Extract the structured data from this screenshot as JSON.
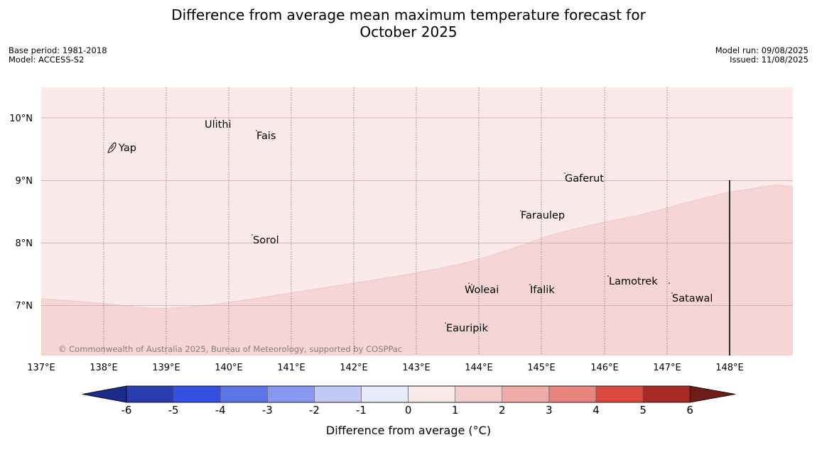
{
  "header": {
    "title_line1": "Difference from average mean maximum temperature forecast for",
    "title_line2": "October 2025",
    "base_period": "Base period: 1981-2018",
    "model": "Model: ACCESS-S2",
    "model_run": "Model run: 09/08/2025",
    "issued": "Issued: 11/08/2025"
  },
  "map": {
    "lat_labels": [
      "10°N",
      "9°N",
      "8°N",
      "7°N"
    ],
    "lon_labels": [
      "137°E",
      "138°E",
      "139°E",
      "140°E",
      "141°E",
      "142°E",
      "143°E",
      "144°E",
      "145°E",
      "146°E",
      "147°E",
      "148°E"
    ],
    "places": [
      {
        "name": "Yap"
      },
      {
        "name": "Ulithi"
      },
      {
        "name": "Fais"
      },
      {
        "name": "Gaferut"
      },
      {
        "name": "Faraulep"
      },
      {
        "name": "Sorol"
      },
      {
        "name": "Lamotrek"
      },
      {
        "name": "Woleai"
      },
      {
        "name": "Ifalik"
      },
      {
        "name": "Satawal"
      },
      {
        "name": "Eauripik"
      }
    ],
    "copyright": "© Commonwealth of Australia 2025, Bureau of Meteorology, supported by COSPPac",
    "region_colors": {
      "0_to_1": "#fbeae9",
      "1_to_2": "#f5d6d4"
    }
  },
  "colorbar": {
    "title": "Difference from average (°C)",
    "labels": [
      "-6",
      "-5",
      "-4",
      "-3",
      "-2",
      "-1",
      "0",
      "1",
      "2",
      "3",
      "4",
      "5",
      "6"
    ],
    "colors": [
      "#1c2a8a",
      "#2a3db0",
      "#3350e0",
      "#5b74e6",
      "#8898ee",
      "#c2c9f5",
      "#e9ebfb",
      "#fceaea",
      "#f3cecc",
      "#edaca7",
      "#e6847d",
      "#db4a40",
      "#a82a24",
      "#6e1d18"
    ]
  }
}
